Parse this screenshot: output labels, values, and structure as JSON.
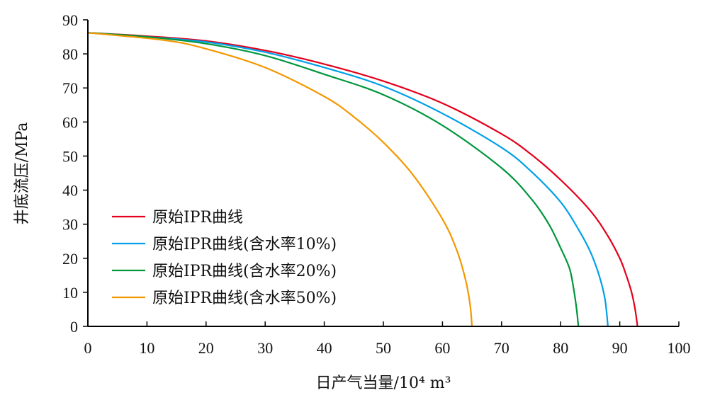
{
  "chart_data": {
    "type": "line",
    "xlabel": "日产气当量/10⁴ m³",
    "ylabel": "井底流压/MPa",
    "xlim": [
      0,
      100
    ],
    "ylim": [
      0,
      90
    ],
    "xticks": [
      0,
      10,
      20,
      30,
      40,
      50,
      60,
      70,
      80,
      90,
      100
    ],
    "yticks": [
      0,
      10,
      20,
      30,
      40,
      50,
      60,
      70,
      80,
      90
    ],
    "grid": false,
    "legend_position": "center-left",
    "series": [
      {
        "name": "原始IPR曲线",
        "color": "#e3001b",
        "x": [
          0,
          10,
          20,
          30,
          40,
          50,
          60,
          70,
          75,
          80,
          85,
          88,
          90,
          91,
          92,
          92.6,
          93
        ],
        "y": [
          86.2,
          85.2,
          83.8,
          81,
          77,
          72,
          65.5,
          56.5,
          50.5,
          43,
          34,
          26.5,
          20,
          15.5,
          10,
          5,
          0
        ]
      },
      {
        "name": "原始IPR曲线(含水率10%)",
        "color": "#00a0e9",
        "x": [
          0,
          10,
          20,
          30,
          40,
          50,
          60,
          70,
          75,
          80,
          83,
          85,
          86.5,
          87.5,
          88
        ],
        "y": [
          86.2,
          85,
          83.5,
          80.5,
          76,
          70.5,
          62.5,
          52.5,
          45.5,
          36.5,
          28.5,
          22,
          15,
          8,
          0
        ]
      },
      {
        "name": "原始IPR曲线(含水率20%)",
        "color": "#00963c",
        "x": [
          0,
          10,
          20,
          30,
          40,
          50,
          60,
          70,
          75,
          78,
          80,
          81.5,
          82.2,
          82.7,
          83
        ],
        "y": [
          86.2,
          85,
          83,
          79.5,
          74,
          68,
          59,
          46.5,
          37.5,
          30,
          23,
          17,
          11,
          5,
          0
        ]
      },
      {
        "name": "原始IPR曲线(含水率50%)",
        "color": "#f39800",
        "x": [
          0,
          13,
          20,
          30,
          40,
          45,
          50,
          55,
          60,
          62.5,
          64,
          64.7,
          65
        ],
        "y": [
          86.2,
          84,
          81.5,
          76,
          67.5,
          61.5,
          54,
          44.5,
          31.5,
          22,
          13,
          6,
          0
        ]
      }
    ]
  }
}
